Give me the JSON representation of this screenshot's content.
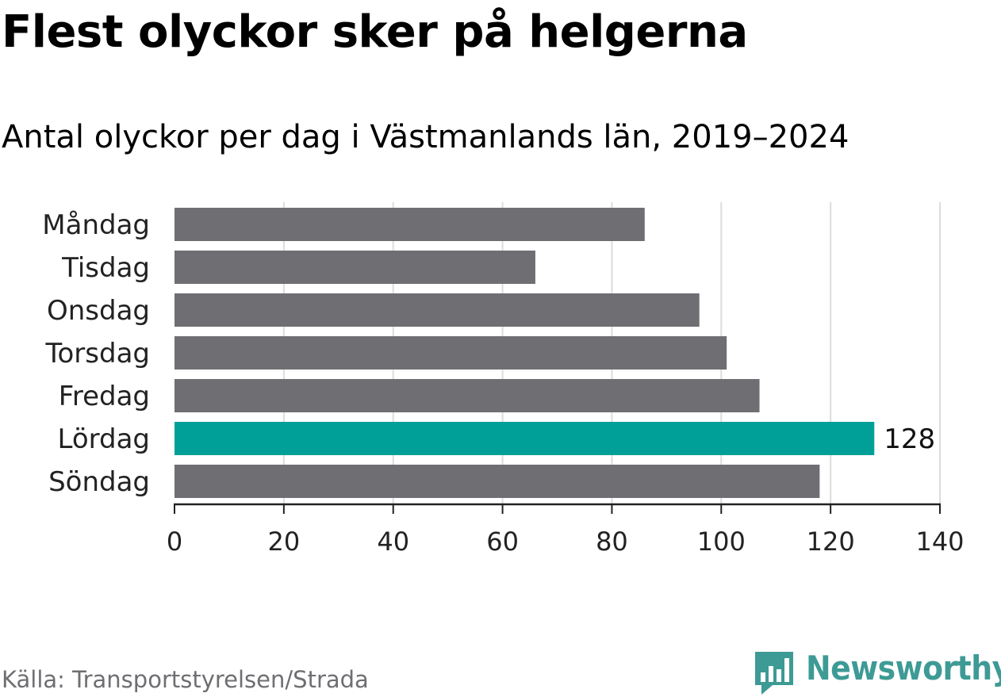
{
  "header": {
    "title": "Flest olyckor sker på helgerna",
    "subtitle": "Antal olyckor per dag i Västmanlands län, 2019–2024"
  },
  "chart_data": {
    "type": "bar",
    "orientation": "horizontal",
    "title": "Flest olyckor sker på helgerna",
    "subtitle": "Antal olyckor per dag i Västmanlands län, 2019–2024",
    "xlabel": "",
    "ylabel": "",
    "categories": [
      "Måndag",
      "Tisdag",
      "Onsdag",
      "Torsdag",
      "Fredag",
      "Lördag",
      "Söndag"
    ],
    "values": [
      86,
      66,
      96,
      101,
      107,
      128,
      118
    ],
    "xlim": [
      0,
      140
    ],
    "xticks": [
      "0",
      "20",
      "40",
      "60",
      "80",
      "100",
      "120",
      "140"
    ],
    "grid": true,
    "highlight": {
      "category": "Lördag",
      "label": "128"
    },
    "colors": {
      "bar": "#6f6e72",
      "highlight": "#00a098",
      "grid": "#dcdcdc",
      "axis": "#222222"
    }
  },
  "footer": {
    "source": "Källa: Transportstyrelsen/Strada",
    "brand_name": "Newsworthy",
    "brand_icon": "bar-chart-bubble-icon",
    "brand_color": "#3e9a95"
  }
}
